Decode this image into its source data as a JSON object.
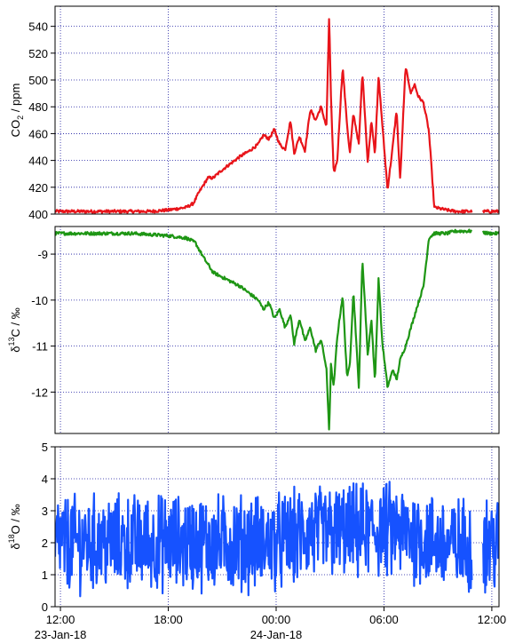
{
  "chart_data": [
    {
      "type": "line",
      "ylabel_parts": {
        "main": "CO",
        "sub": "2",
        "rest": " / ppm"
      },
      "ylim": [
        400,
        555
      ],
      "yticks": [
        400,
        420,
        440,
        460,
        480,
        500,
        520,
        540
      ],
      "grid": true,
      "color": "#e8141a",
      "series": [
        {
          "x": [
            -0.3,
            0,
            2,
            4,
            5,
            6,
            7,
            7.4,
            7.7,
            8.2,
            8.5,
            9,
            9.5,
            10,
            10.5,
            11,
            11.3,
            11.6,
            11.9,
            12.2,
            12.5,
            12.8,
            13,
            13.3,
            13.6,
            13.9,
            14.2,
            14.5,
            14.8,
            14.95,
            15.05,
            15.2,
            15.4,
            15.7,
            15.95,
            16.1,
            16.3,
            16.6,
            16.8,
            17.1,
            17.3,
            17.5,
            17.7,
            17.9,
            18.2,
            18.5,
            18.7,
            18.9,
            19.2,
            19.5,
            19.7,
            19.9,
            20.2,
            20.5,
            20.8,
            21.5,
            22,
            22.6,
            23.2,
            23.8,
            24.4
          ],
          "values": [
            402,
            402,
            402,
            402,
            402,
            403,
            405,
            408,
            416,
            427,
            427,
            433,
            438,
            443,
            447,
            452,
            459,
            456,
            463,
            452,
            448,
            470,
            445,
            458,
            447,
            478,
            470,
            480,
            465,
            548,
            488,
            430,
            440,
            510,
            466,
            445,
            475,
            452,
            506,
            438,
            470,
            445,
            503,
            468,
            418,
            452,
            478,
            425,
            510,
            490,
            497,
            488,
            483,
            462,
            405,
            403,
            402,
            402,
            402,
            402,
            402
          ]
        }
      ]
    },
    {
      "type": "line",
      "ylabel_parts": {
        "main": "δ",
        "sup": "13",
        "rest": "C / ‰"
      },
      "ylim": [
        -12.9,
        -8.4
      ],
      "yticks": [
        -12,
        -11,
        -10,
        -9
      ],
      "grid": true,
      "color": "#1e9614",
      "series": [
        {
          "x": [
            -0.3,
            0,
            2,
            4,
            6,
            7,
            7.5,
            8,
            8.5,
            9,
            9.5,
            10,
            10.5,
            11,
            11.3,
            11.6,
            11.9,
            12.2,
            12.5,
            12.8,
            13,
            13.3,
            13.6,
            13.9,
            14.2,
            14.5,
            14.8,
            14.95,
            15.05,
            15.2,
            15.4,
            15.7,
            15.95,
            16.1,
            16.3,
            16.6,
            16.8,
            17.1,
            17.3,
            17.5,
            17.7,
            17.9,
            18.2,
            18.5,
            18.7,
            18.9,
            19.2,
            19.5,
            19.8,
            20.2,
            20.5,
            20.8,
            21.5,
            22,
            22.6,
            23.2,
            23.8,
            24.4
          ],
          "values": [
            -8.55,
            -8.55,
            -8.55,
            -8.55,
            -8.6,
            -8.65,
            -8.75,
            -9.1,
            -9.4,
            -9.5,
            -9.6,
            -9.7,
            -9.85,
            -10.0,
            -10.2,
            -10.05,
            -10.4,
            -10.2,
            -10.6,
            -10.3,
            -10.95,
            -10.4,
            -10.9,
            -10.6,
            -11.1,
            -10.85,
            -11.5,
            -12.85,
            -11.4,
            -11.9,
            -10.8,
            -9.9,
            -11.7,
            -11.4,
            -9.8,
            -11.9,
            -9.1,
            -11.2,
            -10.4,
            -11.8,
            -9.5,
            -10.9,
            -11.9,
            -11.5,
            -11.75,
            -11.3,
            -11.0,
            -10.6,
            -10.2,
            -9.7,
            -8.65,
            -8.55,
            -8.55,
            -8.5,
            -8.5,
            -8.5,
            -8.55,
            -8.55
          ]
        }
      ]
    },
    {
      "type": "line",
      "ylabel_parts": {
        "main": "δ",
        "sup": "18",
        "rest": "O / ‰"
      },
      "ylim": [
        0,
        5
      ],
      "yticks": [
        0,
        1,
        2,
        3,
        4,
        5
      ],
      "grid": true,
      "color": "#1652ff",
      "noise": true,
      "series": [
        {
          "x": [
            -0.3,
            4,
            8,
            12,
            14,
            16,
            18,
            20,
            21.5,
            24.4
          ],
          "values": [
            2.0,
            2.0,
            2.0,
            2.0,
            2.3,
            2.3,
            2.4,
            2.2,
            1.9,
            2.0
          ]
        }
      ]
    }
  ],
  "xaxis": {
    "range": [
      "2018-01-23 11:42",
      "2018-01-24 12:24"
    ],
    "tick_labels": [
      "12:00",
      "18:00",
      "00:00",
      "06:00",
      "12:00"
    ],
    "date_labels": [
      "23-Jan-18",
      "24-Jan-18"
    ],
    "gaps": [
      [
        "2018-01-24 10:55",
        "2018-01-24 11:30"
      ]
    ]
  }
}
